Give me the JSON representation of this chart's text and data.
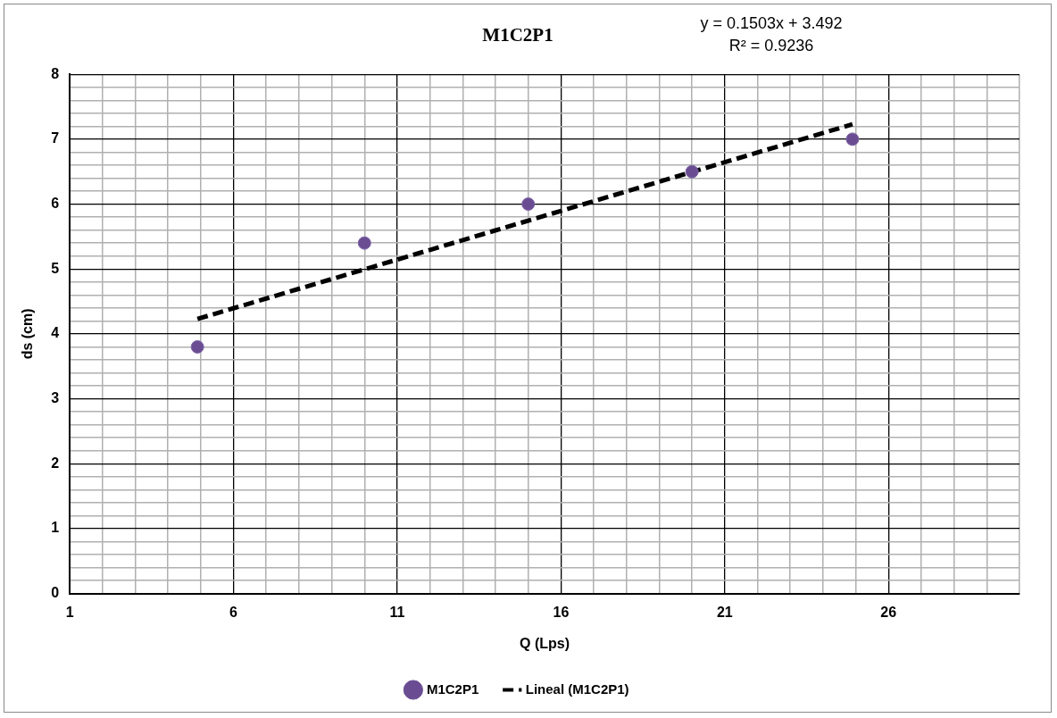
{
  "chart_data": {
    "type": "scatter",
    "title": "M1C2P1",
    "xlabel": "Q (Lps)",
    "ylabel": "ds (cm)",
    "annotations": [
      "y = 0.1503x + 3.492",
      "R² = 0.9236"
    ],
    "series": [
      {
        "name": "M1C2P1",
        "color": "#6a4c93",
        "x": [
          4.9,
          10,
          15,
          20,
          24.9
        ],
        "values": [
          3.8,
          5.4,
          6,
          6.5,
          7
        ]
      },
      {
        "name": "Lineal (M1C2P1)",
        "type": "line",
        "color": "#000000",
        "line_style": "dashed",
        "marker": "none",
        "x": [
          4.9,
          24.9
        ],
        "values": [
          4.23,
          7.23
        ]
      }
    ],
    "marker": "circle",
    "xlim": [
      1,
      30
    ],
    "ylim": [
      0,
      8
    ],
    "xticks": [
      1,
      {
        "value": 2,
        "label": null
      },
      {
        "value": 3,
        "label": null
      },
      {
        "value": 4,
        "label": null
      },
      {
        "value": 5,
        "label": null
      },
      6,
      {
        "value": 7,
        "label": null
      },
      {
        "value": 8,
        "label": null
      },
      {
        "value": 9,
        "label": null
      },
      {
        "value": 10,
        "label": null
      },
      11,
      {
        "value": 12,
        "label": null
      },
      {
        "value": 13,
        "label": null
      },
      {
        "value": 14,
        "label": null
      },
      {
        "value": 15,
        "label": null
      },
      16,
      {
        "value": 17,
        "label": null
      },
      {
        "value": 18,
        "label": null
      },
      {
        "value": 19,
        "label": null
      },
      {
        "value": 20,
        "label": null
      },
      21,
      {
        "value": 22,
        "label": null
      },
      {
        "value": 23,
        "label": null
      },
      {
        "value": 24,
        "label": null
      },
      {
        "value": 25,
        "label": null
      },
      26,
      {
        "value": 27,
        "label": null
      },
      {
        "value": 28,
        "label": null
      },
      {
        "value": 29,
        "label": null
      },
      {
        "value": 30,
        "label": null
      }
    ],
    "yticks": [
      0,
      {
        "value": 0.2,
        "label": null
      },
      {
        "value": 0.4,
        "label": null
      },
      {
        "value": 0.6,
        "label": null
      },
      {
        "value": 0.8,
        "label": null
      },
      1,
      {
        "value": 1.2,
        "label": null
      },
      {
        "value": 1.4,
        "label": null
      },
      {
        "value": 1.6,
        "label": null
      },
      {
        "value": 1.8,
        "label": null
      },
      2,
      {
        "value": 2.2,
        "label": null
      },
      {
        "value": 2.4,
        "label": null
      },
      {
        "value": 2.6,
        "label": null
      },
      {
        "value": 2.8,
        "label": null
      },
      3,
      {
        "value": 3.2,
        "label": null
      },
      {
        "value": 3.4,
        "label": null
      },
      {
        "value": 3.6,
        "label": null
      },
      {
        "value": 3.8,
        "label": null
      },
      4,
      {
        "value": 4.2,
        "label": null
      },
      {
        "value": 4.4,
        "label": null
      },
      {
        "value": 4.6,
        "label": null
      },
      {
        "value": 4.8,
        "label": null
      },
      5,
      {
        "value": 5.2,
        "label": null
      },
      {
        "value": 5.4,
        "label": null
      },
      {
        "value": 5.6,
        "label": null
      },
      {
        "value": 5.8,
        "label": null
      },
      6,
      {
        "value": 6.2,
        "label": null
      },
      {
        "value": 6.4,
        "label": null
      },
      {
        "value": 6.6,
        "label": null
      },
      {
        "value": 6.8,
        "label": null
      },
      7,
      {
        "value": 7.2,
        "label": null
      },
      {
        "value": 7.4,
        "label": null
      },
      {
        "value": 7.6,
        "label": null
      },
      {
        "value": 7.8,
        "label": null
      },
      8
    ],
    "grid": true,
    "legend": "bottom"
  }
}
